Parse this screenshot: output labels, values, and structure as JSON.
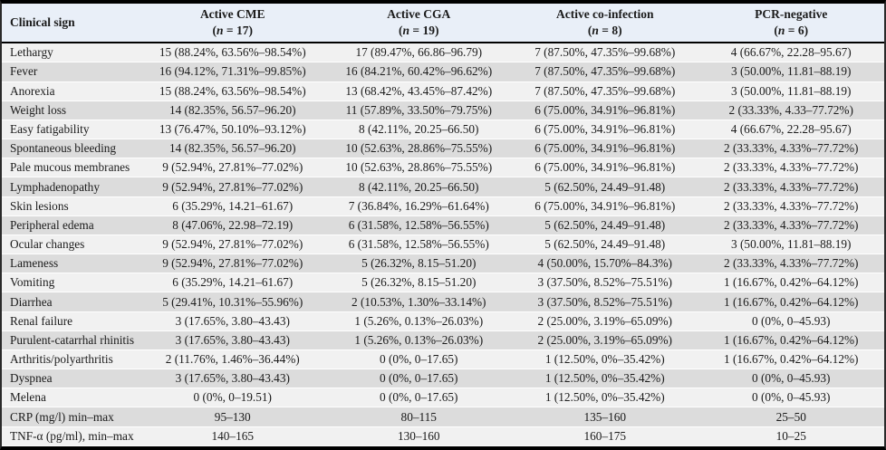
{
  "colors": {
    "header_background": "#e9eff8",
    "row_light": "#f1f1f1",
    "row_dark": "#dcdcdc",
    "rule_color": "#000000",
    "text_color": "#1b1b1b"
  },
  "table": {
    "sign_column_header": "Clinical sign",
    "columns": [
      {
        "title": "Active CME",
        "n": "17",
        "subtitle_parts": [
          "(",
          "n",
          " = 17)"
        ]
      },
      {
        "title": "Active CGA",
        "n": "19",
        "subtitle_parts": [
          "(",
          "n",
          " = 19)"
        ]
      },
      {
        "title": "Active co-infection",
        "n": "8",
        "subtitle_parts": [
          "(",
          "n",
          " = 8)"
        ]
      },
      {
        "title": "PCR-negative",
        "n": "6",
        "subtitle_parts": [
          "(",
          "n",
          " = 6)"
        ]
      }
    ],
    "rows": [
      {
        "sign": "Lethargy",
        "values": [
          "15 (88.24%, 63.56%–98.54%)",
          "17 (89.47%, 66.86–96.79)",
          "7 (87.50%, 47.35%–99.68%)",
          "4 (66.67%, 22.28–95.67)"
        ]
      },
      {
        "sign": "Fever",
        "values": [
          "16 (94.12%, 71.31%–99.85%)",
          "16 (84.21%, 60.42%–96.62%)",
          "7 (87.50%, 47.35%–99.68%)",
          "3 (50.00%, 11.81–88.19)"
        ]
      },
      {
        "sign": "Anorexia",
        "values": [
          "15 (88.24%, 63.56%–98.54%)",
          "13 (68.42%, 43.45%–87.42%)",
          "7 (87.50%, 47.35%–99.68%)",
          "3 (50.00%, 11.81–88.19)"
        ]
      },
      {
        "sign": "Weight loss",
        "values": [
          "14 (82.35%, 56.57–96.20)",
          "11 (57.89%, 33.50%–79.75%)",
          "6 (75.00%, 34.91%–96.81%)",
          "2 (33.33%, 4.33–77.72%)"
        ]
      },
      {
        "sign": "Easy fatigability",
        "values": [
          "13 (76.47%, 50.10%–93.12%)",
          "8 (42.11%, 20.25–66.50)",
          "6 (75.00%, 34.91%–96.81%)",
          "4 (66.67%, 22.28–95.67)"
        ]
      },
      {
        "sign": "Spontaneous bleeding",
        "values": [
          "14 (82.35%, 56.57–96.20)",
          "10 (52.63%, 28.86%–75.55%)",
          "6 (75.00%, 34.91%–96.81%)",
          "2 (33.33%, 4.33%–77.72%)"
        ]
      },
      {
        "sign": "Pale mucous membranes",
        "values": [
          "9 (52.94%, 27.81%–77.02%)",
          "10 (52.63%, 28.86%–75.55%)",
          "6 (75.00%, 34.91%–96.81%)",
          "2 (33.33%, 4.33%–77.72%)"
        ]
      },
      {
        "sign": "Lymphadenopathy",
        "values": [
          "9 (52.94%, 27.81%–77.02%)",
          "8 (42.11%, 20.25–66.50)",
          "5 (62.50%, 24.49–91.48)",
          "2 (33.33%, 4.33%–77.72%)"
        ]
      },
      {
        "sign": "Skin lesions",
        "values": [
          "6 (35.29%, 14.21–61.67)",
          "7 (36.84%, 16.29%–61.64%)",
          "6 (75.00%, 34.91%–96.81%)",
          "2 (33.33%, 4.33%–77.72%)"
        ]
      },
      {
        "sign": "Peripheral edema",
        "values": [
          "8 (47.06%, 22.98–72.19)",
          "6 (31.58%, 12.58%–56.55%)",
          "5 (62.50%, 24.49–91.48)",
          "2 (33.33%, 4.33%–77.72%)"
        ]
      },
      {
        "sign": "Ocular changes",
        "values": [
          "9 (52.94%, 27.81%–77.02%)",
          "6 (31.58%, 12.58%–56.55%)",
          "5 (62.50%, 24.49–91.48)",
          "3 (50.00%, 11.81–88.19)"
        ]
      },
      {
        "sign": "Lameness",
        "values": [
          "9 (52.94%, 27.81%–77.02%)",
          "5 (26.32%, 8.15–51.20)",
          "4 (50.00%, 15.70%–84.3%)",
          "2 (33.33%, 4.33%–77.72%)"
        ]
      },
      {
        "sign": "Vomiting",
        "values": [
          "6 (35.29%, 14.21–61.67)",
          "5 (26.32%, 8.15–51.20)",
          "3 (37.50%, 8.52%–75.51%)",
          "1 (16.67%, 0.42%–64.12%)"
        ]
      },
      {
        "sign": "Diarrhea",
        "values": [
          "5 (29.41%, 10.31%–55.96%)",
          "2 (10.53%, 1.30%–33.14%)",
          "3 (37.50%, 8.52%–75.51%)",
          "1 (16.67%, 0.42%–64.12%)"
        ]
      },
      {
        "sign": "Renal failure",
        "values": [
          "3 (17.65%, 3.80–43.43)",
          "1 (5.26%, 0.13%–26.03%)",
          "2 (25.00%, 3.19%–65.09%)",
          "0 (0%, 0–45.93)"
        ]
      },
      {
        "sign": "Purulent-catarrhal rhinitis",
        "values": [
          "3 (17.65%, 3.80–43.43)",
          "1 (5.26%, 0.13%–26.03%)",
          "2 (25.00%, 3.19%–65.09%)",
          "1 (16.67%, 0.42%–64.12%)"
        ]
      },
      {
        "sign": "Arthritis/polyarthritis",
        "values": [
          "2 (11.76%, 1.46%–36.44%)",
          "0 (0%, 0–17.65)",
          "1 (12.50%, 0%–35.42%)",
          "1 (16.67%, 0.42%–64.12%)"
        ]
      },
      {
        "sign": "Dyspnea",
        "values": [
          "3 (17.65%, 3.80–43.43)",
          "0 (0%, 0–17.65)",
          "1 (12.50%, 0%–35.42%)",
          "0 (0%, 0–45.93)"
        ]
      },
      {
        "sign": "Melena",
        "values": [
          "0 (0%, 0–19.51)",
          "0 (0%, 0–17.65)",
          "1 (12.50%, 0%–35.42%)",
          "0 (0%, 0–45.93)"
        ]
      },
      {
        "sign": "CRP (mg/l) min–max",
        "values": [
          "95–130",
          "80–115",
          "135–160",
          "25–50"
        ]
      },
      {
        "sign": "TNF-α (pg/ml), min–max",
        "values": [
          "140–165",
          "130–160",
          "160–175",
          "10–25"
        ]
      }
    ]
  }
}
